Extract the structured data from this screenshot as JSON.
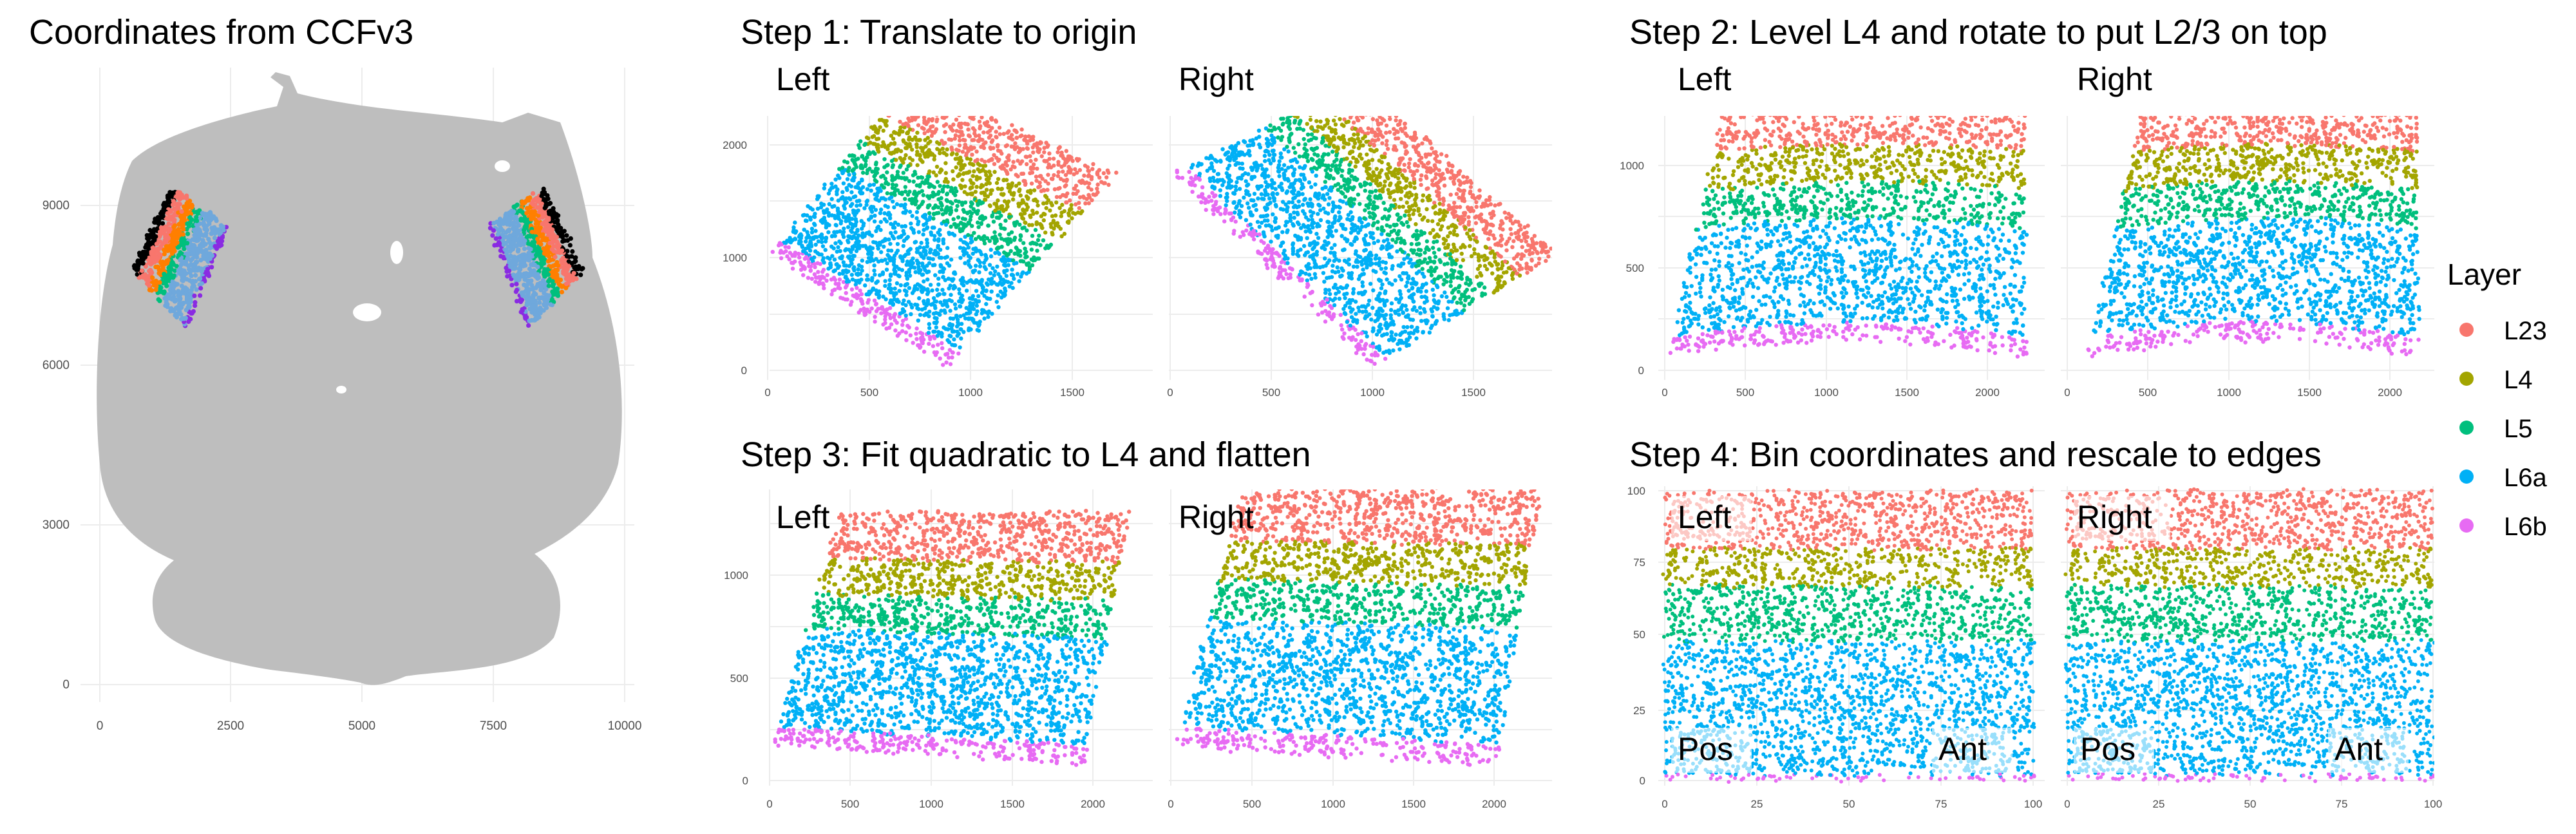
{
  "panels": {
    "ccf": {
      "title": "Coordinates from CCFv3",
      "x_ticks": [
        "0",
        "2500",
        "5000",
        "7500",
        "10000"
      ],
      "y_ticks": [
        "0",
        "3000",
        "6000",
        "9000"
      ]
    },
    "step1": {
      "title": "Step 1: Translate to origin",
      "left_label": "Left",
      "right_label": "Right",
      "x_ticks": [
        "0",
        "500",
        "1000",
        "1500"
      ],
      "y_ticks": [
        "0",
        "1000",
        "2000"
      ]
    },
    "step2": {
      "title": "Step 2: Level L4 and rotate to put L2/3 on top",
      "left_label": "Left",
      "right_label": "Right",
      "x_ticks": [
        "0",
        "500",
        "1000",
        "1500",
        "2000"
      ],
      "y_ticks": [
        "0",
        "500",
        "1000"
      ]
    },
    "step3": {
      "title": "Step 3: Fit quadratic to L4 and flatten",
      "left_label": "Left",
      "right_label": "Right",
      "x_ticks": [
        "0",
        "500",
        "1000",
        "1500",
        "2000"
      ],
      "y_ticks": [
        "0",
        "500",
        "1000"
      ]
    },
    "step4": {
      "title": "Step 4: Bin coordinates and rescale to edges",
      "left_label": "Left",
      "right_label": "Right",
      "pos_label": "Pos",
      "ant_label": "Ant",
      "x_ticks": [
        "0",
        "25",
        "50",
        "75",
        "100"
      ],
      "y_ticks": [
        "0",
        "25",
        "50",
        "75",
        "100"
      ]
    }
  },
  "legend": {
    "title": "Layer",
    "items": [
      {
        "label": "L23",
        "color": "#F8766D"
      },
      {
        "label": "L4",
        "color": "#A3A500"
      },
      {
        "label": "L5",
        "color": "#00BF7D"
      },
      {
        "label": "L6a",
        "color": "#00B0F6"
      },
      {
        "label": "L6b",
        "color": "#E76BF3"
      }
    ]
  },
  "ccf_extra_layer_colors": [
    "#000000",
    "#FF7F00",
    "#6FA8DC",
    "#8A2BE2"
  ]
}
